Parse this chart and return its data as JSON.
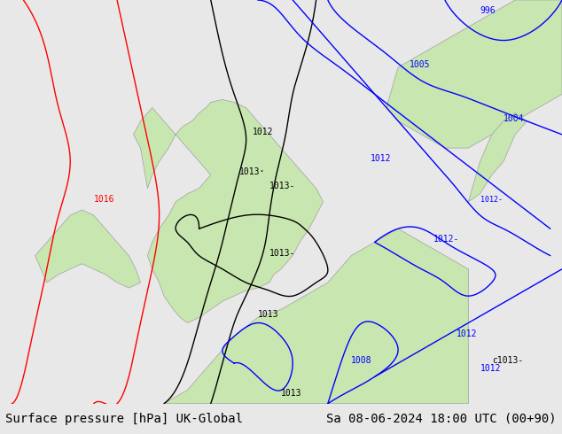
{
  "title_left": "Surface pressure [hPa] UK-Global",
  "title_right": "Sa 08-06-2024 18:00 UTC (00+90)",
  "bg_color": "#e8e8e8",
  "land_color": "#c8e6b0",
  "sea_color": "#e8e8e8",
  "border_color": "#a0a0a0",
  "font_size_title": 10,
  "fig_width": 6.34,
  "fig_height": 4.9,
  "dpi": 100,
  "map_extent": [
    -12,
    12,
    47,
    62
  ]
}
